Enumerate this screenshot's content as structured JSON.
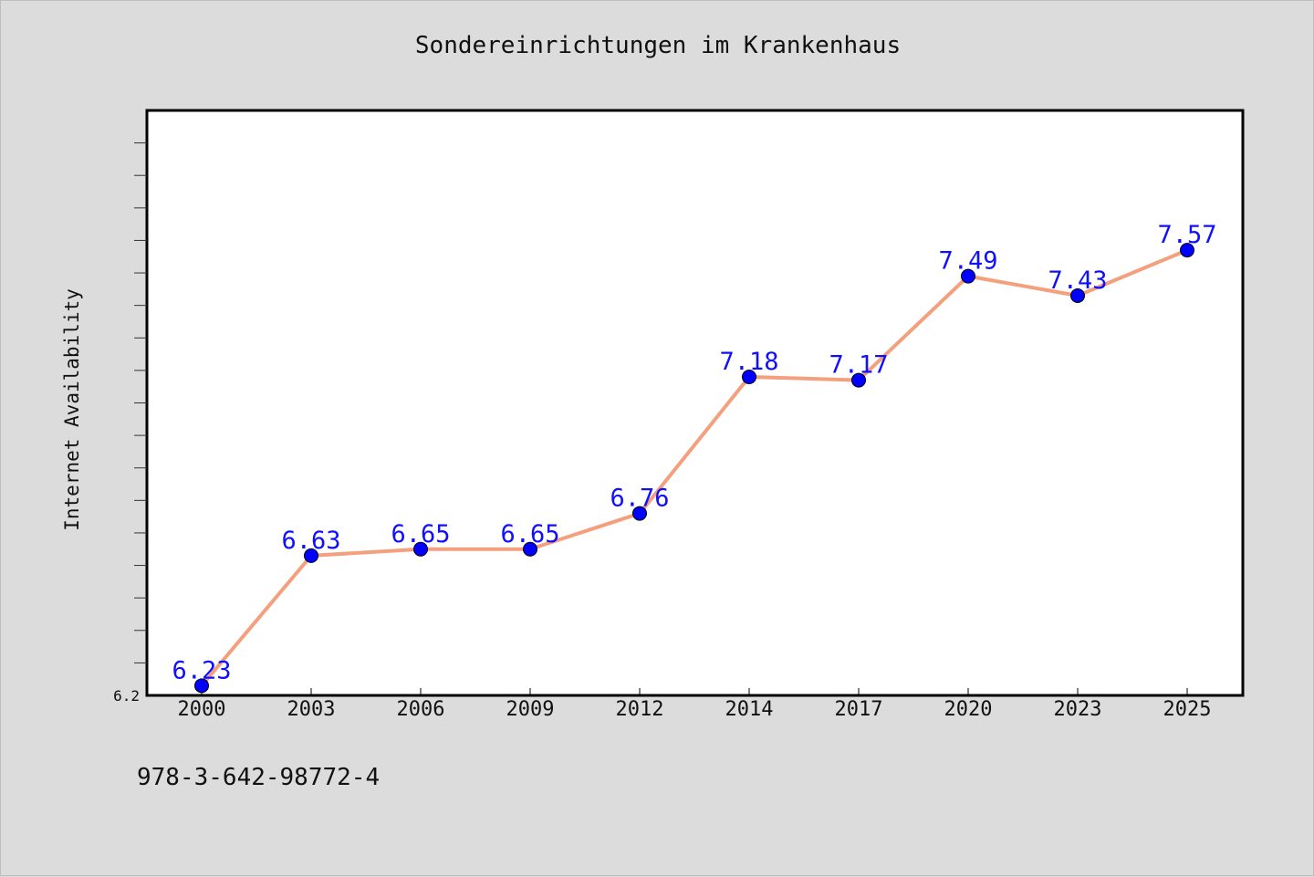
{
  "chart_data": {
    "type": "line",
    "title": "Sondereinrichtungen im Krankenhaus",
    "xlabel": "",
    "ylabel": "Internet Availability",
    "categories": [
      "2000",
      "2003",
      "2006",
      "2009",
      "2012",
      "2014",
      "2017",
      "2020",
      "2023",
      "2025"
    ],
    "series": [
      {
        "values": [
          6.23,
          6.63,
          6.65,
          6.65,
          6.76,
          7.18,
          7.17,
          7.49,
          7.43,
          7.57
        ]
      }
    ],
    "data_labels": [
      "6.23",
      "6.63",
      "6.65",
      "6.65",
      "6.76",
      "7.18",
      "7.17",
      "7.49",
      "7.43",
      "7.57"
    ],
    "ylim": [
      6.2,
      8.0
    ],
    "yticks_labeled": [
      "6.2"
    ],
    "grid": false,
    "legend": "none",
    "colors": {
      "line": "#f4a07e",
      "marker": "#0000ff",
      "label": "#1010ff",
      "background": "#dcdcdc",
      "plot_area": "#ffffff"
    }
  },
  "annotation": {
    "isbn": "978-3-642-98772-4"
  }
}
